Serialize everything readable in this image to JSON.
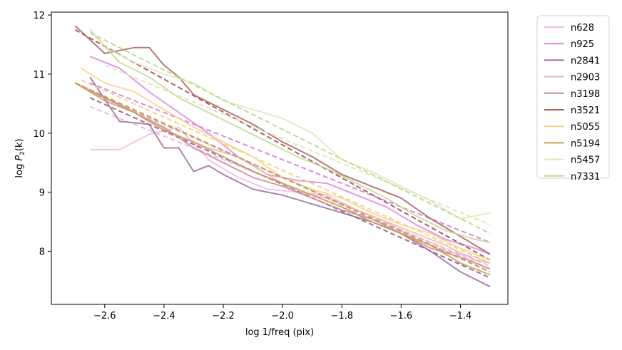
{
  "chart_data": {
    "type": "line",
    "title": "",
    "xlabel": "log 1/freq (pix)",
    "ylabel": "log P2(k)",
    "ylabel_main": "log ",
    "ylabel_var": "P",
    "ylabel_sub": "2",
    "ylabel_arg": "(k)",
    "xlim": [
      -2.78,
      -1.24
    ],
    "ylim": [
      7.1,
      12.05
    ],
    "xticks": [
      -2.6,
      -2.4,
      -2.2,
      -2.0,
      -1.8,
      -1.6,
      -1.4
    ],
    "xtick_labels": [
      "−2.6",
      "−2.4",
      "−2.2",
      "−2.0",
      "−1.8",
      "−1.6",
      "−1.4"
    ],
    "yticks": [
      8,
      9,
      10,
      11,
      12
    ],
    "ytick_labels": [
      "8",
      "9",
      "10",
      "11",
      "12"
    ],
    "grid": false,
    "legend_position": "outside-right",
    "series": [
      {
        "name": "n628",
        "color": "#eebbe6",
        "x": [
          -2.65,
          -2.55,
          -2.45,
          -2.35,
          -2.25,
          -2.15,
          -2.05,
          -1.95,
          -1.85,
          -1.75,
          -1.65,
          -1.55,
          -1.45,
          -1.35,
          -1.3
        ],
        "y": [
          9.72,
          9.72,
          9.98,
          10.1,
          9.55,
          9.25,
          9.05,
          9.0,
          8.95,
          8.7,
          8.5,
          8.2,
          8.0,
          7.9,
          7.8
        ],
        "fit": {
          "x": [
            -2.65,
            -1.3
          ],
          "y": [
            10.45,
            7.75
          ]
        }
      },
      {
        "name": "n925",
        "color": "#dd88dd",
        "x": [
          -2.65,
          -2.55,
          -2.45,
          -2.35,
          -2.25,
          -2.15,
          -2.05,
          -1.95,
          -1.85,
          -1.75,
          -1.65,
          -1.55,
          -1.45,
          -1.35,
          -1.3
        ],
        "y": [
          11.3,
          11.1,
          10.7,
          10.35,
          10.0,
          9.6,
          9.3,
          9.2,
          9.15,
          8.95,
          8.75,
          8.45,
          8.2,
          8.05,
          7.95
        ],
        "fit": {
          "x": [
            -2.65,
            -1.3
          ],
          "y": [
            10.85,
            8.15
          ]
        }
      },
      {
        "name": "n2841",
        "color": "#9b6f9b",
        "x": [
          -2.65,
          -2.55,
          -2.45,
          -2.4,
          -2.35,
          -2.3,
          -2.25,
          -2.2,
          -2.1,
          -2.0,
          -1.9,
          -1.8,
          -1.7,
          -1.6,
          -1.5,
          -1.4,
          -1.3
        ],
        "y": [
          10.95,
          10.2,
          10.15,
          9.75,
          9.75,
          9.35,
          9.45,
          9.3,
          9.05,
          8.95,
          8.8,
          8.65,
          8.5,
          8.3,
          8.0,
          7.65,
          7.4
        ],
        "fit": {
          "x": [
            -2.65,
            -1.3
          ],
          "y": [
            10.6,
            7.55
          ]
        }
      },
      {
        "name": "n2903",
        "color": "#e6b8b8",
        "x": [
          -2.65,
          -2.55,
          -2.45,
          -2.35,
          -2.25,
          -2.15,
          -2.05,
          -1.95,
          -1.85,
          -1.75,
          -1.65,
          -1.55,
          -1.45,
          -1.35,
          -1.3
        ],
        "y": [
          10.7,
          10.5,
          10.2,
          9.95,
          9.75,
          9.6,
          9.3,
          9.0,
          8.9,
          8.7,
          8.5,
          8.3,
          8.1,
          7.85,
          7.8
        ],
        "fit": {
          "x": [
            -2.65,
            -1.3
          ],
          "y": [
            10.7,
            7.7
          ]
        }
      },
      {
        "name": "n3198",
        "color": "#cc8a99",
        "x": [
          -2.7,
          -2.6,
          -2.5,
          -2.4,
          -2.3,
          -2.2,
          -2.1,
          -2.0,
          -1.9,
          -1.8,
          -1.7,
          -1.6,
          -1.5,
          -1.4,
          -1.3
        ],
        "y": [
          10.85,
          10.6,
          10.35,
          10.1,
          9.75,
          9.5,
          9.25,
          9.1,
          8.9,
          8.7,
          8.55,
          8.3,
          8.05,
          7.9,
          7.7
        ],
        "fit": {
          "x": [
            -2.7,
            -1.3
          ],
          "y": [
            10.85,
            7.65
          ]
        }
      },
      {
        "name": "n3521",
        "color": "#a96060",
        "x": [
          -2.7,
          -2.6,
          -2.5,
          -2.45,
          -2.4,
          -2.35,
          -2.3,
          -2.2,
          -2.1,
          -2.0,
          -1.9,
          -1.8,
          -1.7,
          -1.6,
          -1.5,
          -1.4,
          -1.3
        ],
        "y": [
          11.82,
          11.35,
          11.45,
          11.45,
          11.15,
          10.95,
          10.65,
          10.4,
          10.15,
          9.85,
          9.6,
          9.3,
          9.1,
          8.9,
          8.55,
          8.25,
          7.95
        ],
        "fit": {
          "x": [
            -2.7,
            -1.3
          ],
          "y": [
            11.75,
            7.85
          ]
        }
      },
      {
        "name": "n5055",
        "color": "#f5d28a",
        "x": [
          -2.68,
          -2.6,
          -2.5,
          -2.4,
          -2.3,
          -2.2,
          -2.1,
          -2.0,
          -1.9,
          -1.8,
          -1.7,
          -1.6,
          -1.5,
          -1.4,
          -1.3
        ],
        "y": [
          11.1,
          10.85,
          10.7,
          10.4,
          10.1,
          9.85,
          9.6,
          9.25,
          9.05,
          8.9,
          8.65,
          8.45,
          8.3,
          8.05,
          7.85
        ],
        "fit": {
          "x": [
            -2.68,
            -1.3
          ],
          "y": [
            10.9,
            7.8
          ]
        }
      },
      {
        "name": "n5194",
        "color": "#c99d55",
        "x": [
          -2.7,
          -2.6,
          -2.5,
          -2.4,
          -2.3,
          -2.2,
          -2.1,
          -2.0,
          -1.9,
          -1.8,
          -1.7,
          -1.6,
          -1.5,
          -1.4,
          -1.3
        ],
        "y": [
          10.85,
          10.55,
          10.35,
          10.05,
          9.85,
          9.6,
          9.35,
          9.15,
          8.95,
          8.75,
          8.5,
          8.3,
          8.1,
          7.8,
          7.6
        ],
        "fit": {
          "x": [
            -2.7,
            -1.3
          ],
          "y": [
            10.85,
            7.65
          ]
        }
      },
      {
        "name": "n5457",
        "color": "#dde8bc",
        "x": [
          -2.6,
          -2.5,
          -2.4,
          -2.3,
          -2.2,
          -2.1,
          -2.0,
          -1.9,
          -1.8,
          -1.7,
          -1.6,
          -1.5,
          -1.4,
          -1.35,
          -1.3
        ],
        "y": [
          11.45,
          11.2,
          11.0,
          10.85,
          10.55,
          10.4,
          10.25,
          10.0,
          9.55,
          9.35,
          9.1,
          8.85,
          8.55,
          8.6,
          8.65
        ],
        "fit": {
          "x": [
            -2.6,
            -1.3
          ],
          "y": [
            11.15,
            8.45
          ]
        }
      },
      {
        "name": "n7331",
        "color": "#c3d993",
        "x": [
          -2.65,
          -2.55,
          -2.45,
          -2.35,
          -2.25,
          -2.15,
          -2.05,
          -1.95,
          -1.85,
          -1.75,
          -1.65,
          -1.55,
          -1.45,
          -1.35,
          -1.3
        ],
        "y": [
          11.75,
          11.2,
          10.95,
          10.6,
          10.35,
          10.1,
          9.85,
          9.6,
          9.4,
          9.15,
          8.9,
          8.6,
          8.35,
          8.2,
          8.15
        ],
        "fit": {
          "x": [
            -2.65,
            -1.3
          ],
          "y": [
            11.7,
            8.3
          ]
        }
      }
    ]
  }
}
